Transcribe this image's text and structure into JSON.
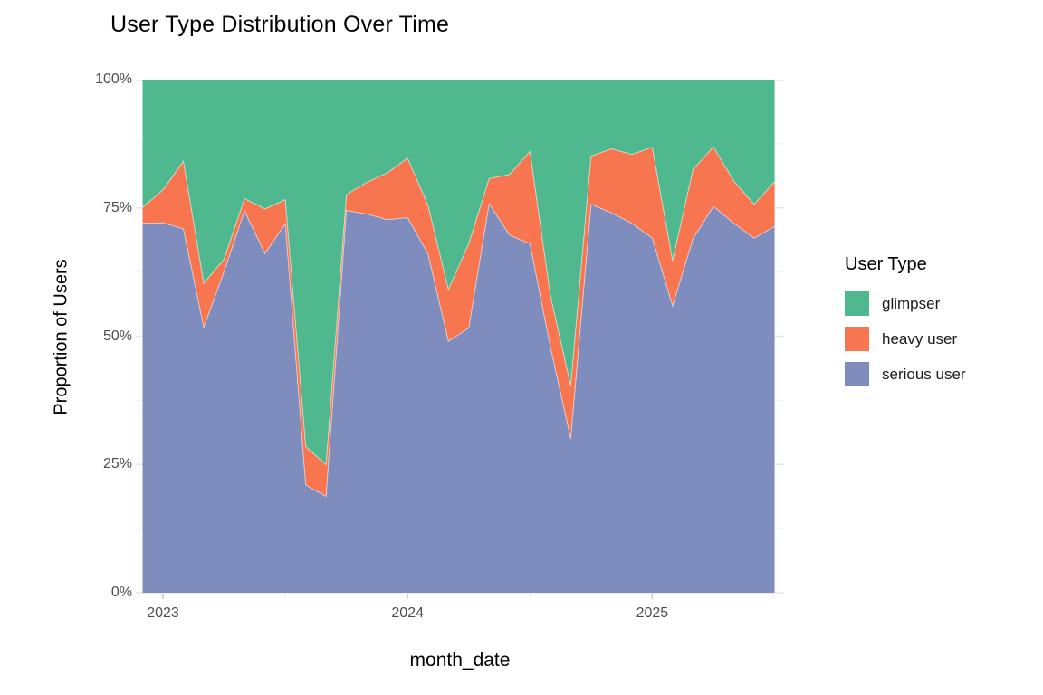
{
  "title": "User Type Distribution Over Time",
  "x_axis": {
    "label": "month_date",
    "ticks": [
      "2023",
      "2024",
      "2025"
    ]
  },
  "y_axis": {
    "label": "Proportion of Users",
    "ticks": [
      "0%",
      "25%",
      "50%",
      "75%",
      "100%"
    ]
  },
  "legend": {
    "title": "User Type",
    "position": "right",
    "entries": [
      {
        "label": "glimpser",
        "color": "#50B88E"
      },
      {
        "label": "heavy user",
        "color": "#F7764F"
      },
      {
        "label": "serious user",
        "color": "#7E8CBE"
      }
    ]
  },
  "chart_data": {
    "type": "area",
    "stacked": true,
    "units": "percent",
    "title": "User Type Distribution Over Time",
    "xlabel": "month_date",
    "ylabel": "Proportion of Users",
    "ylim": [
      0,
      100
    ],
    "grid": true,
    "stack_order_bottom_to_top": [
      "serious user",
      "heavy user",
      "glimpser"
    ],
    "x": [
      "2022-12",
      "2023-01",
      "2023-02",
      "2023-03",
      "2023-04",
      "2023-05",
      "2023-06",
      "2023-07",
      "2023-08",
      "2023-09",
      "2023-10",
      "2023-11",
      "2023-12",
      "2024-01",
      "2024-02",
      "2024-03",
      "2024-04",
      "2024-05",
      "2024-06",
      "2024-07",
      "2024-08",
      "2024-09",
      "2024-10",
      "2024-11",
      "2024-12",
      "2025-01",
      "2025-02",
      "2025-03",
      "2025-04",
      "2025-05",
      "2025-06",
      "2025-07"
    ],
    "series": [
      {
        "name": "glimpser",
        "values": [
          24.9,
          21.5,
          15.9,
          39.7,
          35.0,
          23.2,
          25.2,
          23.4,
          71.5,
          75.1,
          22.4,
          20.0,
          18.2,
          15.3,
          24.5,
          40.9,
          32.0,
          19.3,
          18.5,
          14.0,
          42.0,
          59.7,
          14.9,
          13.5,
          14.6,
          13.2,
          35.3,
          17.5,
          13.1,
          19.8,
          24.3,
          19.9
        ]
      },
      {
        "name": "heavy user",
        "values": [
          3.1,
          6.4,
          13.2,
          8.6,
          2.4,
          2.4,
          8.7,
          4.7,
          7.5,
          6.1,
          3.1,
          6.2,
          9.1,
          11.6,
          9.5,
          10.1,
          16.4,
          4.9,
          11.8,
          18.0,
          10.0,
          10.3,
          9.4,
          12.5,
          13.4,
          17.7,
          8.8,
          13.5,
          11.6,
          8.2,
          6.6,
          8.7
        ]
      },
      {
        "name": "serious user",
        "values": [
          72.0,
          72.1,
          70.9,
          51.7,
          62.6,
          74.4,
          66.1,
          71.9,
          21.0,
          18.8,
          74.5,
          73.8,
          72.7,
          73.1,
          66.0,
          49.0,
          51.6,
          75.8,
          69.7,
          68.0,
          48.0,
          30.0,
          75.7,
          74.0,
          72.0,
          69.1,
          55.9,
          69.0,
          75.3,
          72.0,
          69.1,
          71.4
        ]
      }
    ],
    "layout": {
      "background": "#FFFFFF",
      "gridline_major": "#E6E6E6",
      "gridline_minor": "#F2F2F2",
      "tick_mark": "#C9C9C9",
      "seam": "rgba(255,255,255,0.55)"
    }
  }
}
